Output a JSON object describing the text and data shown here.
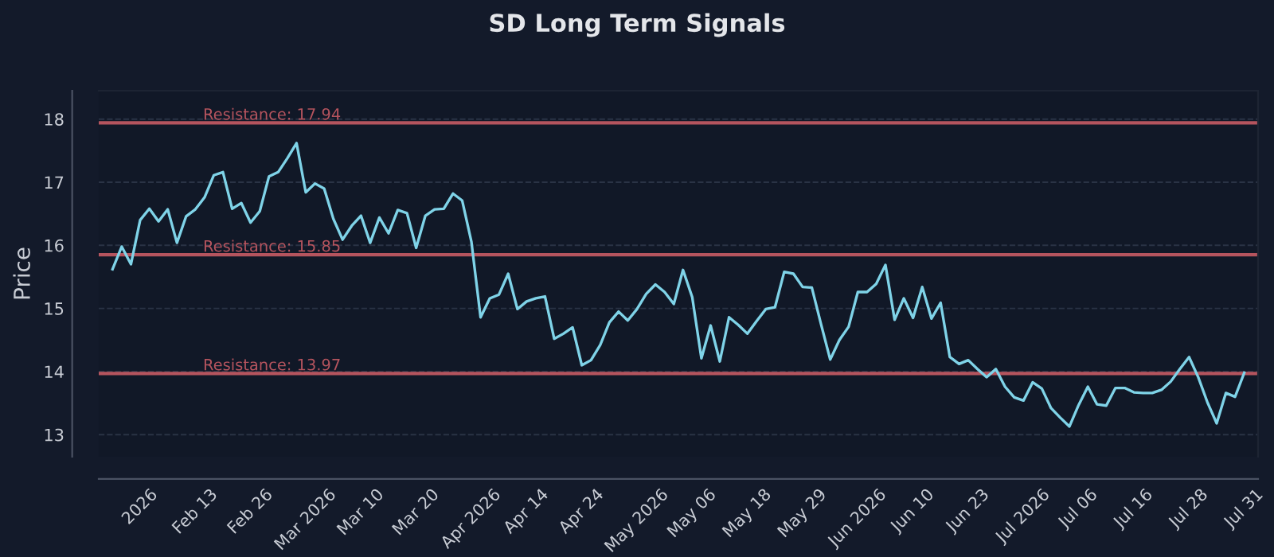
{
  "chart_data": {
    "type": "line",
    "title": "SD Long Term Signals",
    "ylabel": "Price",
    "categories": [
      null,
      null,
      null,
      "2026",
      null,
      null,
      null,
      null,
      null,
      "Feb 13",
      null,
      null,
      null,
      null,
      null,
      "Feb 26",
      null,
      null,
      null,
      null,
      null,
      "Mar 2026",
      null,
      null,
      null,
      null,
      null,
      "Mar 10",
      null,
      null,
      null,
      null,
      null,
      "Mar 20",
      null,
      null,
      null,
      null,
      null,
      "Apr 2026",
      null,
      null,
      null,
      null,
      null,
      "Apr 14",
      null,
      null,
      null,
      null,
      null,
      "Apr 24",
      null,
      null,
      null,
      null,
      null,
      "May 2026",
      null,
      null,
      null,
      null,
      null,
      "May 06",
      null,
      null,
      null,
      null,
      null,
      "May 18",
      null,
      null,
      null,
      null,
      null,
      "May 29",
      null,
      null,
      null,
      null,
      null,
      "Jun 2026",
      null,
      null,
      null,
      null,
      null,
      "Jun 10",
      null,
      null,
      null,
      null,
      null,
      "Jun 23",
      null,
      null,
      null,
      null,
      null,
      "Jul 2026",
      null,
      null,
      null,
      null,
      null,
      "Jul 06",
      null,
      null,
      null,
      null,
      null,
      "Jul 16",
      null,
      null,
      null,
      null,
      null,
      "Jul 28",
      null,
      null,
      null,
      null,
      null,
      "Jul 31"
    ],
    "series": [
      {
        "color": "#7fd3e8",
        "values": [
          15.62,
          15.98,
          15.7,
          16.4,
          16.58,
          16.38,
          16.57,
          16.04,
          16.46,
          16.57,
          16.76,
          17.11,
          17.16,
          16.58,
          16.67,
          16.36,
          16.54,
          17.09,
          17.16,
          17.38,
          17.62,
          16.84,
          16.98,
          16.9,
          16.42,
          16.09,
          16.31,
          16.47,
          16.04,
          16.44,
          16.19,
          16.56,
          16.51,
          15.96,
          16.47,
          16.57,
          16.58,
          16.82,
          16.71,
          16.06,
          14.86,
          15.16,
          15.22,
          15.55,
          14.99,
          15.11,
          15.16,
          15.19,
          14.52,
          14.6,
          14.7,
          14.1,
          14.18,
          14.42,
          14.78,
          14.95,
          14.81,
          14.99,
          15.23,
          15.38,
          15.26,
          15.07,
          15.61,
          15.18,
          14.21,
          14.73,
          14.16,
          14.86,
          14.74,
          14.6,
          14.8,
          14.99,
          15.02,
          15.58,
          15.55,
          15.34,
          15.33,
          14.75,
          14.19,
          14.5,
          14.71,
          15.26,
          15.26,
          15.39,
          15.69,
          14.82,
          15.16,
          14.85,
          15.34,
          14.84,
          15.09,
          14.23,
          14.12,
          14.18,
          14.04,
          13.91,
          14.04,
          13.76,
          13.59,
          13.54,
          13.83,
          13.73,
          13.42,
          13.27,
          13.13,
          13.47,
          13.76,
          13.48,
          13.46,
          13.74,
          13.74,
          13.67,
          13.66,
          13.66,
          13.71,
          13.84,
          14.04,
          14.23,
          13.91,
          13.51,
          13.18,
          13.66,
          13.6,
          13.98
        ]
      }
    ],
    "ylim": [
      12.65,
      18.45
    ],
    "yticks": [
      13,
      14,
      15,
      16,
      17,
      18
    ],
    "grid": "y",
    "ref_lines": [
      {
        "axis": "y",
        "value": 17.94,
        "label": "Resistance: 17.94",
        "color": "#b5545e"
      },
      {
        "axis": "y",
        "value": 15.85,
        "label": "Resistance: 15.85",
        "color": "#b5545e"
      },
      {
        "axis": "y",
        "value": 13.97,
        "label": "Resistance: 13.97",
        "color": "#b5545e"
      }
    ]
  }
}
